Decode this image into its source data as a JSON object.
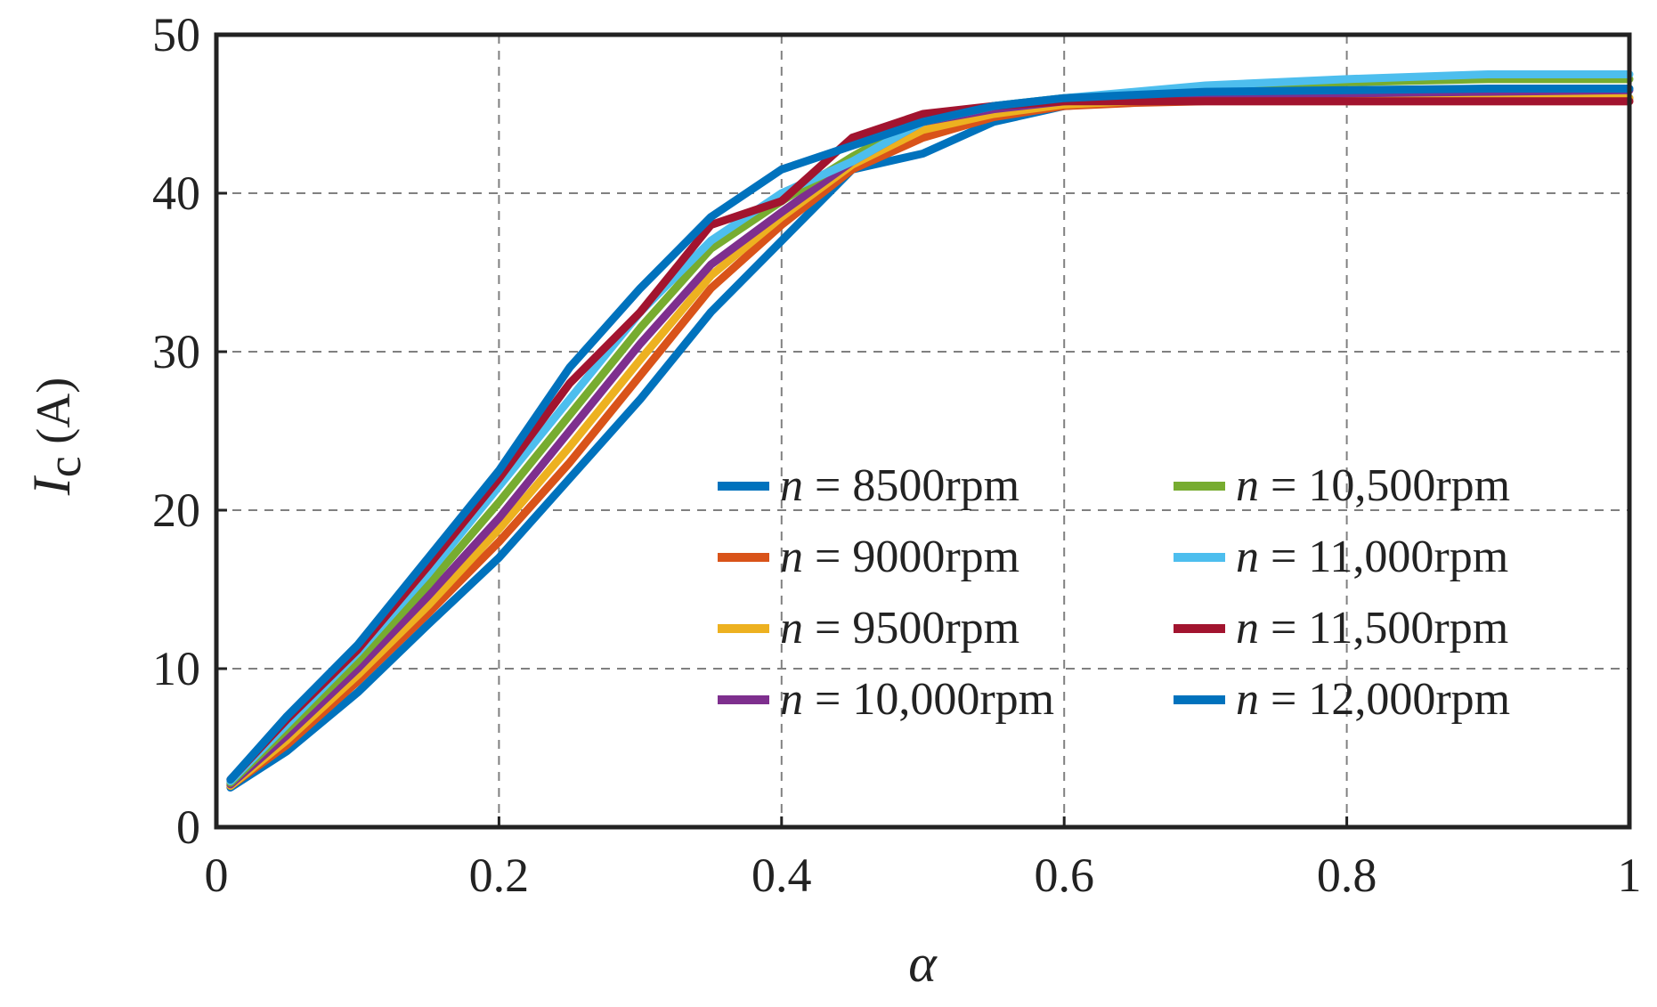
{
  "chart_data": {
    "type": "line",
    "title": "",
    "xlabel": "α",
    "ylabel_main": "I",
    "ylabel_sub": "c",
    "ylabel_unit": " (A)",
    "xlim": [
      0,
      1
    ],
    "ylim": [
      0,
      50
    ],
    "xticks": [
      0,
      0.2,
      0.4,
      0.6,
      0.8,
      1
    ],
    "xtick_labels": [
      "0",
      "0.2",
      "0.4",
      "0.6",
      "0.8",
      "1"
    ],
    "yticks": [
      0,
      10,
      20,
      30,
      40,
      50
    ],
    "ytick_labels": [
      "0",
      "10",
      "20",
      "30",
      "40",
      "50"
    ],
    "grid": true,
    "legend_position": "bottom-right",
    "legend_prefix": "n",
    "x": [
      0.01,
      0.05,
      0.1,
      0.15,
      0.2,
      0.25,
      0.3,
      0.35,
      0.4,
      0.45,
      0.5,
      0.55,
      0.6,
      0.65,
      0.7,
      0.8,
      0.9,
      1.0
    ],
    "series": [
      {
        "name": "n = 8500rpm",
        "legend_value": " = 8500rpm",
        "color": "#0072BD",
        "values": [
          2.5,
          4.8,
          8.5,
          12.8,
          17.0,
          22.0,
          27.0,
          32.5,
          37.0,
          41.5,
          42.5,
          44.5,
          45.5,
          45.8,
          46.0,
          46.0,
          46.0,
          46.0
        ]
      },
      {
        "name": "n = 9000rpm",
        "legend_value": " = 9000rpm",
        "color": "#D95319",
        "values": [
          2.6,
          5.2,
          9.2,
          13.5,
          18.0,
          23.0,
          28.5,
          34.0,
          38.0,
          41.5,
          43.5,
          44.8,
          45.5,
          45.7,
          45.8,
          45.8,
          45.8,
          45.8
        ]
      },
      {
        "name": "n = 9500rpm",
        "legend_value": " = 9500rpm",
        "color": "#EDB120",
        "values": [
          2.6,
          5.5,
          9.6,
          14.0,
          18.8,
          24.0,
          29.5,
          34.8,
          38.5,
          41.8,
          44.0,
          45.0,
          45.6,
          45.8,
          46.0,
          46.0,
          46.0,
          46.0
        ]
      },
      {
        "name": "n = 10,000rpm",
        "legend_value": " = 10,000rpm",
        "color": "#7E2F8E",
        "values": [
          2.7,
          5.8,
          10.0,
          14.6,
          19.5,
          25.0,
          30.5,
          35.5,
          38.8,
          42.0,
          44.5,
          45.3,
          45.8,
          46.0,
          46.2,
          46.3,
          46.4,
          46.5
        ]
      },
      {
        "name": "n = 10,500rpm",
        "legend_value": " = 10,500rpm",
        "color": "#77AC30",
        "values": [
          2.8,
          6.2,
          10.5,
          15.3,
          20.5,
          26.0,
          31.5,
          36.5,
          39.5,
          42.3,
          44.8,
          45.5,
          46.0,
          46.3,
          46.7,
          47.0,
          47.2,
          47.2
        ]
      },
      {
        "name": "n = 11,000rpm",
        "legend_value": " = 11,000rpm",
        "color": "#4DBEEE",
        "values": [
          2.9,
          6.5,
          11.0,
          16.0,
          21.5,
          27.0,
          32.5,
          37.0,
          40.0,
          42.0,
          44.5,
          45.5,
          46.0,
          46.4,
          46.8,
          47.2,
          47.5,
          47.5
        ]
      },
      {
        "name": "n = 11,500rpm",
        "legend_value": " = 11,500rpm",
        "color": "#A2142F",
        "values": [
          3.0,
          6.8,
          11.2,
          16.5,
          22.0,
          28.0,
          32.5,
          38.0,
          39.5,
          43.5,
          45.0,
          45.5,
          45.8,
          45.8,
          45.8,
          45.8,
          45.8,
          45.8
        ]
      },
      {
        "name": "n = 12,000rpm",
        "legend_value": " = 12,000rpm",
        "color": "#0072BD",
        "values": [
          3.0,
          7.0,
          11.5,
          17.0,
          22.5,
          29.0,
          34.0,
          38.5,
          41.5,
          43.0,
          44.5,
          45.5,
          46.0,
          46.2,
          46.4,
          46.5,
          46.6,
          46.6
        ]
      }
    ]
  }
}
